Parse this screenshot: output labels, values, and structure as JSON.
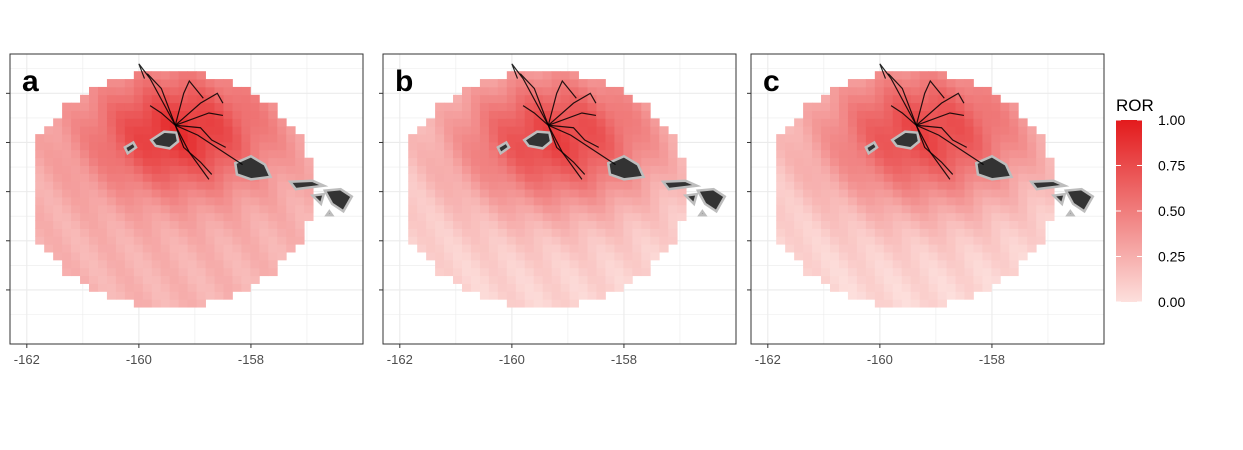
{
  "chart_data": [
    {
      "type": "heatmap",
      "panel_label": "a",
      "x_ticks": [
        "-162",
        "-160",
        "-158"
      ],
      "x_tick_values": [
        -162,
        -160,
        -158
      ],
      "xlim": [
        -162.3,
        -156.0
      ],
      "ylim": [
        17.9,
        23.8
      ],
      "y_tick_values": [
        19,
        20,
        21,
        22,
        23
      ],
      "hotspot": {
        "lon": -159.3,
        "lat": 22.2
      },
      "ror_max": 0.88,
      "ror_min": 0.22,
      "falloff": 0.72
    },
    {
      "type": "heatmap",
      "panel_label": "b",
      "x_ticks": [
        "-162",
        "-160",
        "-158"
      ],
      "x_tick_values": [
        -162,
        -160,
        -158
      ],
      "xlim": [
        -162.3,
        -156.0
      ],
      "ylim": [
        17.9,
        23.8
      ],
      "y_tick_values": [
        19,
        20,
        21,
        22,
        23
      ],
      "hotspot": {
        "lon": -159.2,
        "lat": 22.1
      },
      "ror_max": 0.8,
      "ror_min": 0.06,
      "falloff": 0.55
    },
    {
      "type": "heatmap",
      "panel_label": "c",
      "x_ticks": [
        "-162",
        "-160",
        "-158"
      ],
      "x_tick_values": [
        -162,
        -160,
        -158
      ],
      "xlim": [
        -162.3,
        -156.0
      ],
      "ylim": [
        17.9,
        23.8
      ],
      "y_tick_values": [
        19,
        20,
        21,
        22,
        23
      ],
      "hotspot": {
        "lon": -159.2,
        "lat": 22.2
      },
      "ror_max": 0.78,
      "ror_min": 0.04,
      "falloff": 0.5
    }
  ],
  "legend": {
    "title": "ROR",
    "labels": [
      "1.00",
      "0.75",
      "0.50",
      "0.25",
      "0.00"
    ],
    "values": [
      1.0,
      0.75,
      0.5,
      0.25,
      0.0
    ],
    "color_low": "#fde0dd",
    "color_high": "#e31a1c"
  },
  "colors": {
    "land": "#333333",
    "land_outline": "#bdbdbd",
    "track": "#000000",
    "grid": "#ebebeb",
    "panel_border": "#333333"
  }
}
